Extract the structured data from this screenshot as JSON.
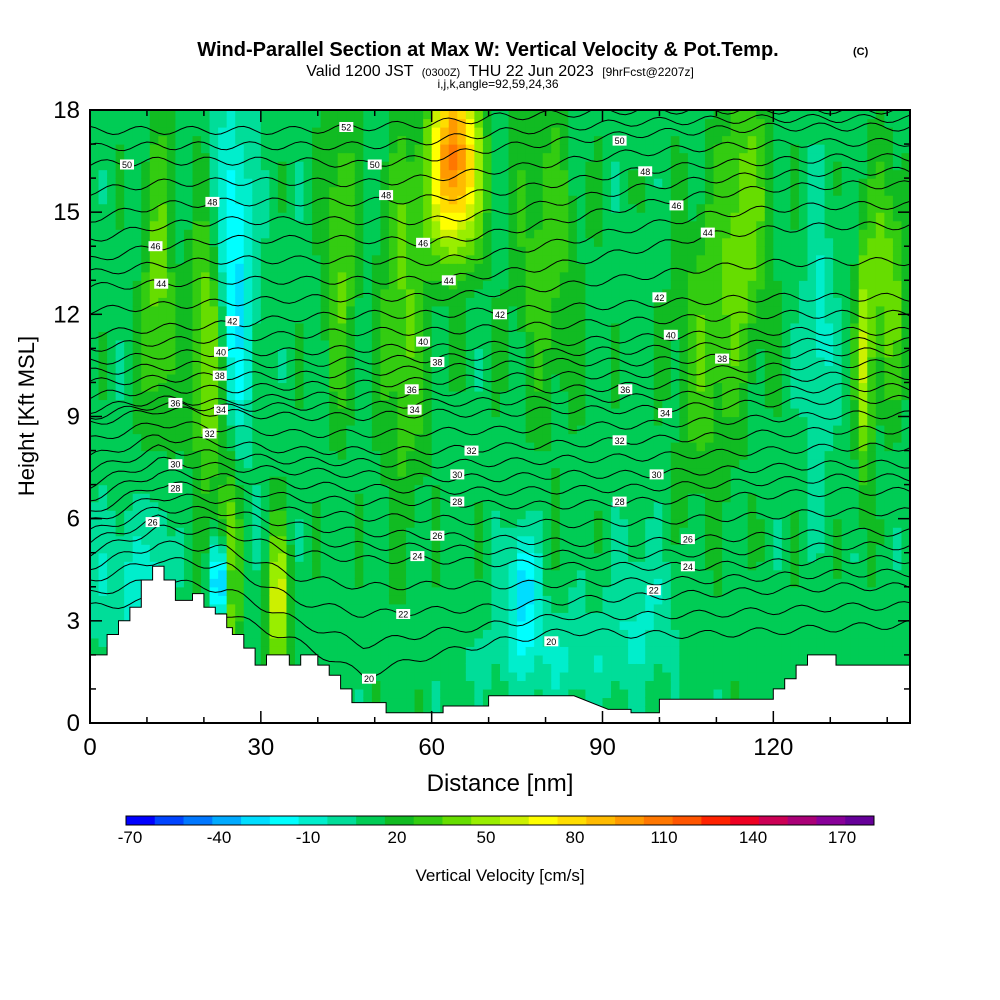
{
  "header": {
    "title_main": "Wind-Parallel Section at Max W: Vertical Velocity & Pot.Temp.",
    "title_units": "(C)",
    "valid_prefix": "Valid 1200 JST",
    "valid_utc": "(0300Z)",
    "valid_date": "THU 22 Jun 2023",
    "forecast": "[9hrFcst@2207z]",
    "section_params": "i,j,k,angle=92,59,24,36"
  },
  "colorbar": {
    "label": "Vertical Velocity [cm/s]",
    "tick_labels": [
      "-70",
      "-40",
      "-10",
      "20",
      "50",
      "80",
      "110",
      "140",
      "170"
    ],
    "colors": [
      "#0000ff",
      "#0044ff",
      "#0077ff",
      "#00aaff",
      "#00ddff",
      "#00ffff",
      "#00eecc",
      "#00dd99",
      "#00cc55",
      "#11bb22",
      "#33cc11",
      "#66dd00",
      "#99ee00",
      "#ccf000",
      "#ffff00",
      "#ffdd00",
      "#ffbb00",
      "#ff9900",
      "#ff7700",
      "#ff5500",
      "#ff2200",
      "#ee0022",
      "#cc0055",
      "#aa0077",
      "#880099",
      "#660099"
    ]
  },
  "chart_data": {
    "type": "heatmap",
    "title": "Wind-Parallel Section at Max W: Vertical Velocity & Pot.Temp. (C)",
    "xlabel": "Distance [nm]",
    "ylabel": "Height [Kft MSL]",
    "xlim": [
      0,
      144
    ],
    "ylim": [
      0,
      18
    ],
    "x_ticks": [
      0,
      30,
      60,
      90,
      120
    ],
    "y_ticks": [
      0,
      3,
      6,
      9,
      12,
      15,
      18
    ],
    "fill_variable": "Vertical Velocity [cm/s]",
    "fill_range": [
      -70,
      180
    ],
    "contour_variable": "Potential Temperature (C)",
    "background_w": 12,
    "w_features": [
      {
        "x": 25,
        "y": 13,
        "sx": 2.5,
        "sy": 3.5,
        "w": -42
      },
      {
        "x": 23,
        "y": 4.2,
        "sx": 1.2,
        "sy": 0.8,
        "w": -65
      },
      {
        "x": 21,
        "y": 11,
        "sx": 2.2,
        "sy": 2.8,
        "w": 45
      },
      {
        "x": 24.5,
        "y": 4.5,
        "sx": 1.3,
        "sy": 2.2,
        "w": 45
      },
      {
        "x": 33,
        "y": 3.5,
        "sx": 1.3,
        "sy": 1.6,
        "w": 50
      },
      {
        "x": 64,
        "y": 17.2,
        "sx": 2.8,
        "sy": 1.8,
        "w": 70
      },
      {
        "x": 64,
        "y": 15.5,
        "sx": 3.5,
        "sy": 1.6,
        "w": 38
      },
      {
        "x": 76,
        "y": 4.0,
        "sx": 1.8,
        "sy": 1.2,
        "w": -40
      },
      {
        "x": 82,
        "y": 2.0,
        "sx": 10,
        "sy": 1.0,
        "w": -15
      },
      {
        "x": 6,
        "y": 4.0,
        "sx": 4,
        "sy": 1.6,
        "w": -18
      },
      {
        "x": 12,
        "y": 5.5,
        "sx": 1.5,
        "sy": 2.5,
        "w": -20
      },
      {
        "x": 128,
        "y": 11.5,
        "sx": 1.8,
        "sy": 2.5,
        "w": -20
      },
      {
        "x": 136,
        "y": 10.5,
        "sx": 1.0,
        "sy": 2.5,
        "w": 40
      },
      {
        "x": 140,
        "y": 13,
        "sx": 2.5,
        "sy": 2.5,
        "w": 30
      },
      {
        "x": 97,
        "y": 3.5,
        "sx": 4,
        "sy": 1.5,
        "w": -14
      },
      {
        "x": 115,
        "y": 15,
        "sx": 3,
        "sy": 3,
        "w": 30
      },
      {
        "x": 12,
        "y": 12,
        "sx": 2,
        "sy": 4,
        "w": 28
      },
      {
        "x": 55,
        "y": 12,
        "sx": 3,
        "sy": 4,
        "w": 25
      },
      {
        "x": 80,
        "y": 14,
        "sx": 4,
        "sy": 3.5,
        "w": 20
      },
      {
        "x": 108,
        "y": 11,
        "sx": 4,
        "sy": 3,
        "w": 22
      },
      {
        "x": 44,
        "y": 14,
        "sx": 2,
        "sy": 3.5,
        "w": 25
      }
    ],
    "terrain": [
      [
        0,
        2.0
      ],
      [
        3,
        2.0
      ],
      [
        3,
        2.6
      ],
      [
        5,
        2.6
      ],
      [
        5,
        3.0
      ],
      [
        7,
        3.0
      ],
      [
        7,
        3.4
      ],
      [
        9,
        3.4
      ],
      [
        9,
        4.2
      ],
      [
        11,
        4.2
      ],
      [
        11,
        4.6
      ],
      [
        13,
        4.6
      ],
      [
        13,
        4.2
      ],
      [
        15,
        4.2
      ],
      [
        15,
        3.6
      ],
      [
        18,
        3.6
      ],
      [
        18,
        3.8
      ],
      [
        20,
        3.8
      ],
      [
        20,
        3.4
      ],
      [
        22,
        3.4
      ],
      [
        22,
        3.2
      ],
      [
        24,
        3.2
      ],
      [
        24,
        2.8
      ],
      [
        25,
        2.8
      ],
      [
        25,
        2.6
      ],
      [
        27,
        2.6
      ],
      [
        27,
        2.2
      ],
      [
        29,
        2.2
      ],
      [
        29,
        1.7
      ],
      [
        31,
        1.7
      ],
      [
        31,
        2.0
      ],
      [
        35,
        2.0
      ],
      [
        35,
        1.7
      ],
      [
        37,
        1.7
      ],
      [
        37,
        2.0
      ],
      [
        40,
        2.0
      ],
      [
        40,
        1.7
      ],
      [
        42,
        1.7
      ],
      [
        42,
        1.4
      ],
      [
        44,
        1.4
      ],
      [
        44,
        1.0
      ],
      [
        46,
        1.0
      ],
      [
        46,
        0.6
      ],
      [
        52,
        0.6
      ],
      [
        52,
        0.3
      ],
      [
        62,
        0.3
      ],
      [
        62,
        0.5
      ],
      [
        70,
        0.5
      ],
      [
        70,
        0.8
      ],
      [
        85,
        0.8
      ],
      [
        91,
        0.4
      ],
      [
        95,
        0.4
      ],
      [
        95,
        0.3
      ],
      [
        100,
        0.3
      ],
      [
        100,
        0.7
      ],
      [
        120,
        0.7
      ],
      [
        120,
        1.0
      ],
      [
        122,
        1.0
      ],
      [
        122,
        1.3
      ],
      [
        124,
        1.3
      ],
      [
        124,
        1.7
      ],
      [
        126,
        1.7
      ],
      [
        126,
        2.0
      ],
      [
        131,
        2.0
      ],
      [
        131,
        1.7
      ],
      [
        144,
        1.7
      ]
    ],
    "theta_contours": {
      "min": 20,
      "max": 52,
      "interval": 1,
      "xs": [
        0,
        12,
        24,
        36,
        48,
        60,
        72,
        84,
        96,
        108,
        120,
        132,
        144
      ],
      "heights": {
        "20": [
          3.4,
          3.6,
          3.2,
          2.4,
          1.4,
          2.0,
          2.4,
          2.7,
          2.6,
          2.6,
          2.7,
          2.8,
          2.9
        ],
        "22": [
          4.2,
          4.8,
          4.6,
          3.6,
          3.2,
          3.3,
          3.4,
          3.6,
          3.7,
          3.8,
          3.9,
          4.0,
          4.0
        ],
        "24": [
          5.0,
          5.7,
          5.6,
          5.0,
          4.8,
          4.8,
          4.7,
          4.6,
          4.6,
          4.6,
          4.7,
          4.8,
          4.8
        ],
        "26": [
          5.6,
          6.3,
          6.2,
          5.8,
          5.6,
          5.5,
          5.4,
          5.3,
          5.3,
          5.4,
          5.5,
          5.6,
          5.6
        ],
        "28": [
          6.2,
          7.0,
          6.9,
          6.6,
          6.5,
          6.5,
          6.4,
          6.4,
          6.5,
          6.6,
          6.7,
          6.8,
          6.8
        ],
        "30": [
          7.0,
          7.7,
          7.5,
          7.4,
          7.3,
          7.2,
          7.2,
          7.3,
          7.3,
          7.4,
          7.5,
          7.6,
          7.6
        ],
        "32": [
          7.8,
          8.4,
          8.2,
          8.0,
          8.0,
          8.0,
          8.1,
          8.2,
          8.3,
          8.4,
          8.5,
          8.6,
          8.6
        ],
        "34": [
          8.8,
          9.2,
          9.1,
          9.0,
          9.0,
          9.1,
          9.1,
          9.2,
          9.2,
          9.3,
          9.4,
          9.5,
          9.5
        ],
        "36": [
          9.2,
          9.5,
          9.4,
          9.6,
          9.6,
          9.7,
          9.8,
          9.8,
          9.9,
          10.0,
          10.1,
          10.2,
          10.2
        ],
        "38": [
          10.0,
          10.1,
          10.2,
          10.2,
          10.3,
          10.4,
          10.5,
          10.6,
          10.6,
          10.7,
          10.8,
          10.9,
          10.9
        ],
        "40": [
          10.6,
          10.8,
          10.9,
          10.9,
          11.0,
          11.0,
          11.1,
          11.2,
          11.3,
          11.4,
          11.5,
          11.5,
          11.5
        ],
        "42": [
          11.4,
          11.6,
          11.7,
          11.9,
          12.0,
          12.0,
          12.1,
          12.2,
          12.3,
          12.4,
          12.5,
          12.5,
          12.5
        ],
        "44": [
          12.8,
          12.9,
          13.0,
          13.0,
          13.0,
          13.0,
          13.2,
          13.5,
          13.9,
          14.3,
          14.5,
          14.6,
          14.6
        ],
        "46": [
          13.6,
          14.0,
          14.2,
          14.2,
          14.2,
          14.1,
          14.4,
          14.8,
          15.2,
          15.5,
          15.7,
          15.8,
          15.8
        ],
        "48": [
          14.8,
          15.2,
          15.3,
          15.3,
          15.3,
          15.4,
          15.6,
          15.9,
          16.2,
          16.4,
          16.5,
          16.6,
          16.6
        ],
        "50": [
          16.4,
          16.5,
          16.5,
          16.5,
          16.4,
          16.6,
          16.9,
          17.1,
          17.3,
          17.4,
          17.5,
          17.5,
          17.5
        ],
        "52": [
          17.4,
          17.4,
          17.4,
          17.4,
          17.5,
          17.6,
          17.8,
          17.9,
          18.0,
          18.0,
          18.0,
          18.0,
          18.0
        ]
      }
    },
    "contour_labels": [
      {
        "text": "52",
        "x": 45,
        "y": 17.5
      },
      {
        "text": "50",
        "x": 6.5,
        "y": 16.4
      },
      {
        "text": "50",
        "x": 50,
        "y": 16.4
      },
      {
        "text": "50",
        "x": 93,
        "y": 17.1
      },
      {
        "text": "48",
        "x": 21.5,
        "y": 15.3
      },
      {
        "text": "48",
        "x": 52,
        "y": 15.5
      },
      {
        "text": "48",
        "x": 97.5,
        "y": 16.2
      },
      {
        "text": "46",
        "x": 11.5,
        "y": 14.0
      },
      {
        "text": "46",
        "x": 58.5,
        "y": 14.1
      },
      {
        "text": "46",
        "x": 103,
        "y": 15.2
      },
      {
        "text": "44",
        "x": 12.5,
        "y": 12.9
      },
      {
        "text": "44",
        "x": 63,
        "y": 13.0
      },
      {
        "text": "44",
        "x": 108.5,
        "y": 14.4
      },
      {
        "text": "42",
        "x": 25,
        "y": 11.8
      },
      {
        "text": "42",
        "x": 72,
        "y": 12.0
      },
      {
        "text": "42",
        "x": 100,
        "y": 12.5
      },
      {
        "text": "40",
        "x": 23,
        "y": 10.9
      },
      {
        "text": "40",
        "x": 58.5,
        "y": 11.2
      },
      {
        "text": "40",
        "x": 102,
        "y": 11.4
      },
      {
        "text": "38",
        "x": 22.8,
        "y": 10.2
      },
      {
        "text": "38",
        "x": 61,
        "y": 10.6
      },
      {
        "text": "38",
        "x": 111,
        "y": 10.7
      },
      {
        "text": "36",
        "x": 15,
        "y": 9.4
      },
      {
        "text": "36",
        "x": 56.5,
        "y": 9.8
      },
      {
        "text": "36",
        "x": 94,
        "y": 9.8
      },
      {
        "text": "34",
        "x": 23,
        "y": 9.2
      },
      {
        "text": "34",
        "x": 57,
        "y": 9.2
      },
      {
        "text": "34",
        "x": 101,
        "y": 9.1
      },
      {
        "text": "32",
        "x": 21,
        "y": 8.5
      },
      {
        "text": "32",
        "x": 67,
        "y": 8.0
      },
      {
        "text": "32",
        "x": 93,
        "y": 8.3
      },
      {
        "text": "30",
        "x": 15,
        "y": 7.6
      },
      {
        "text": "30",
        "x": 64.5,
        "y": 7.3
      },
      {
        "text": "30",
        "x": 99.5,
        "y": 7.3
      },
      {
        "text": "28",
        "x": 15,
        "y": 6.9
      },
      {
        "text": "28",
        "x": 64.5,
        "y": 6.5
      },
      {
        "text": "28",
        "x": 93,
        "y": 6.5
      },
      {
        "text": "26",
        "x": 11,
        "y": 5.9
      },
      {
        "text": "26",
        "x": 61,
        "y": 5.5
      },
      {
        "text": "26",
        "x": 105,
        "y": 5.4
      },
      {
        "text": "24",
        "x": 57.5,
        "y": 4.9
      },
      {
        "text": "24",
        "x": 105,
        "y": 4.6
      },
      {
        "text": "22",
        "x": 55,
        "y": 3.2
      },
      {
        "text": "22",
        "x": 99,
        "y": 3.9
      },
      {
        "text": "20",
        "x": 49,
        "y": 1.3
      },
      {
        "text": "20",
        "x": 81,
        "y": 2.4
      }
    ]
  }
}
